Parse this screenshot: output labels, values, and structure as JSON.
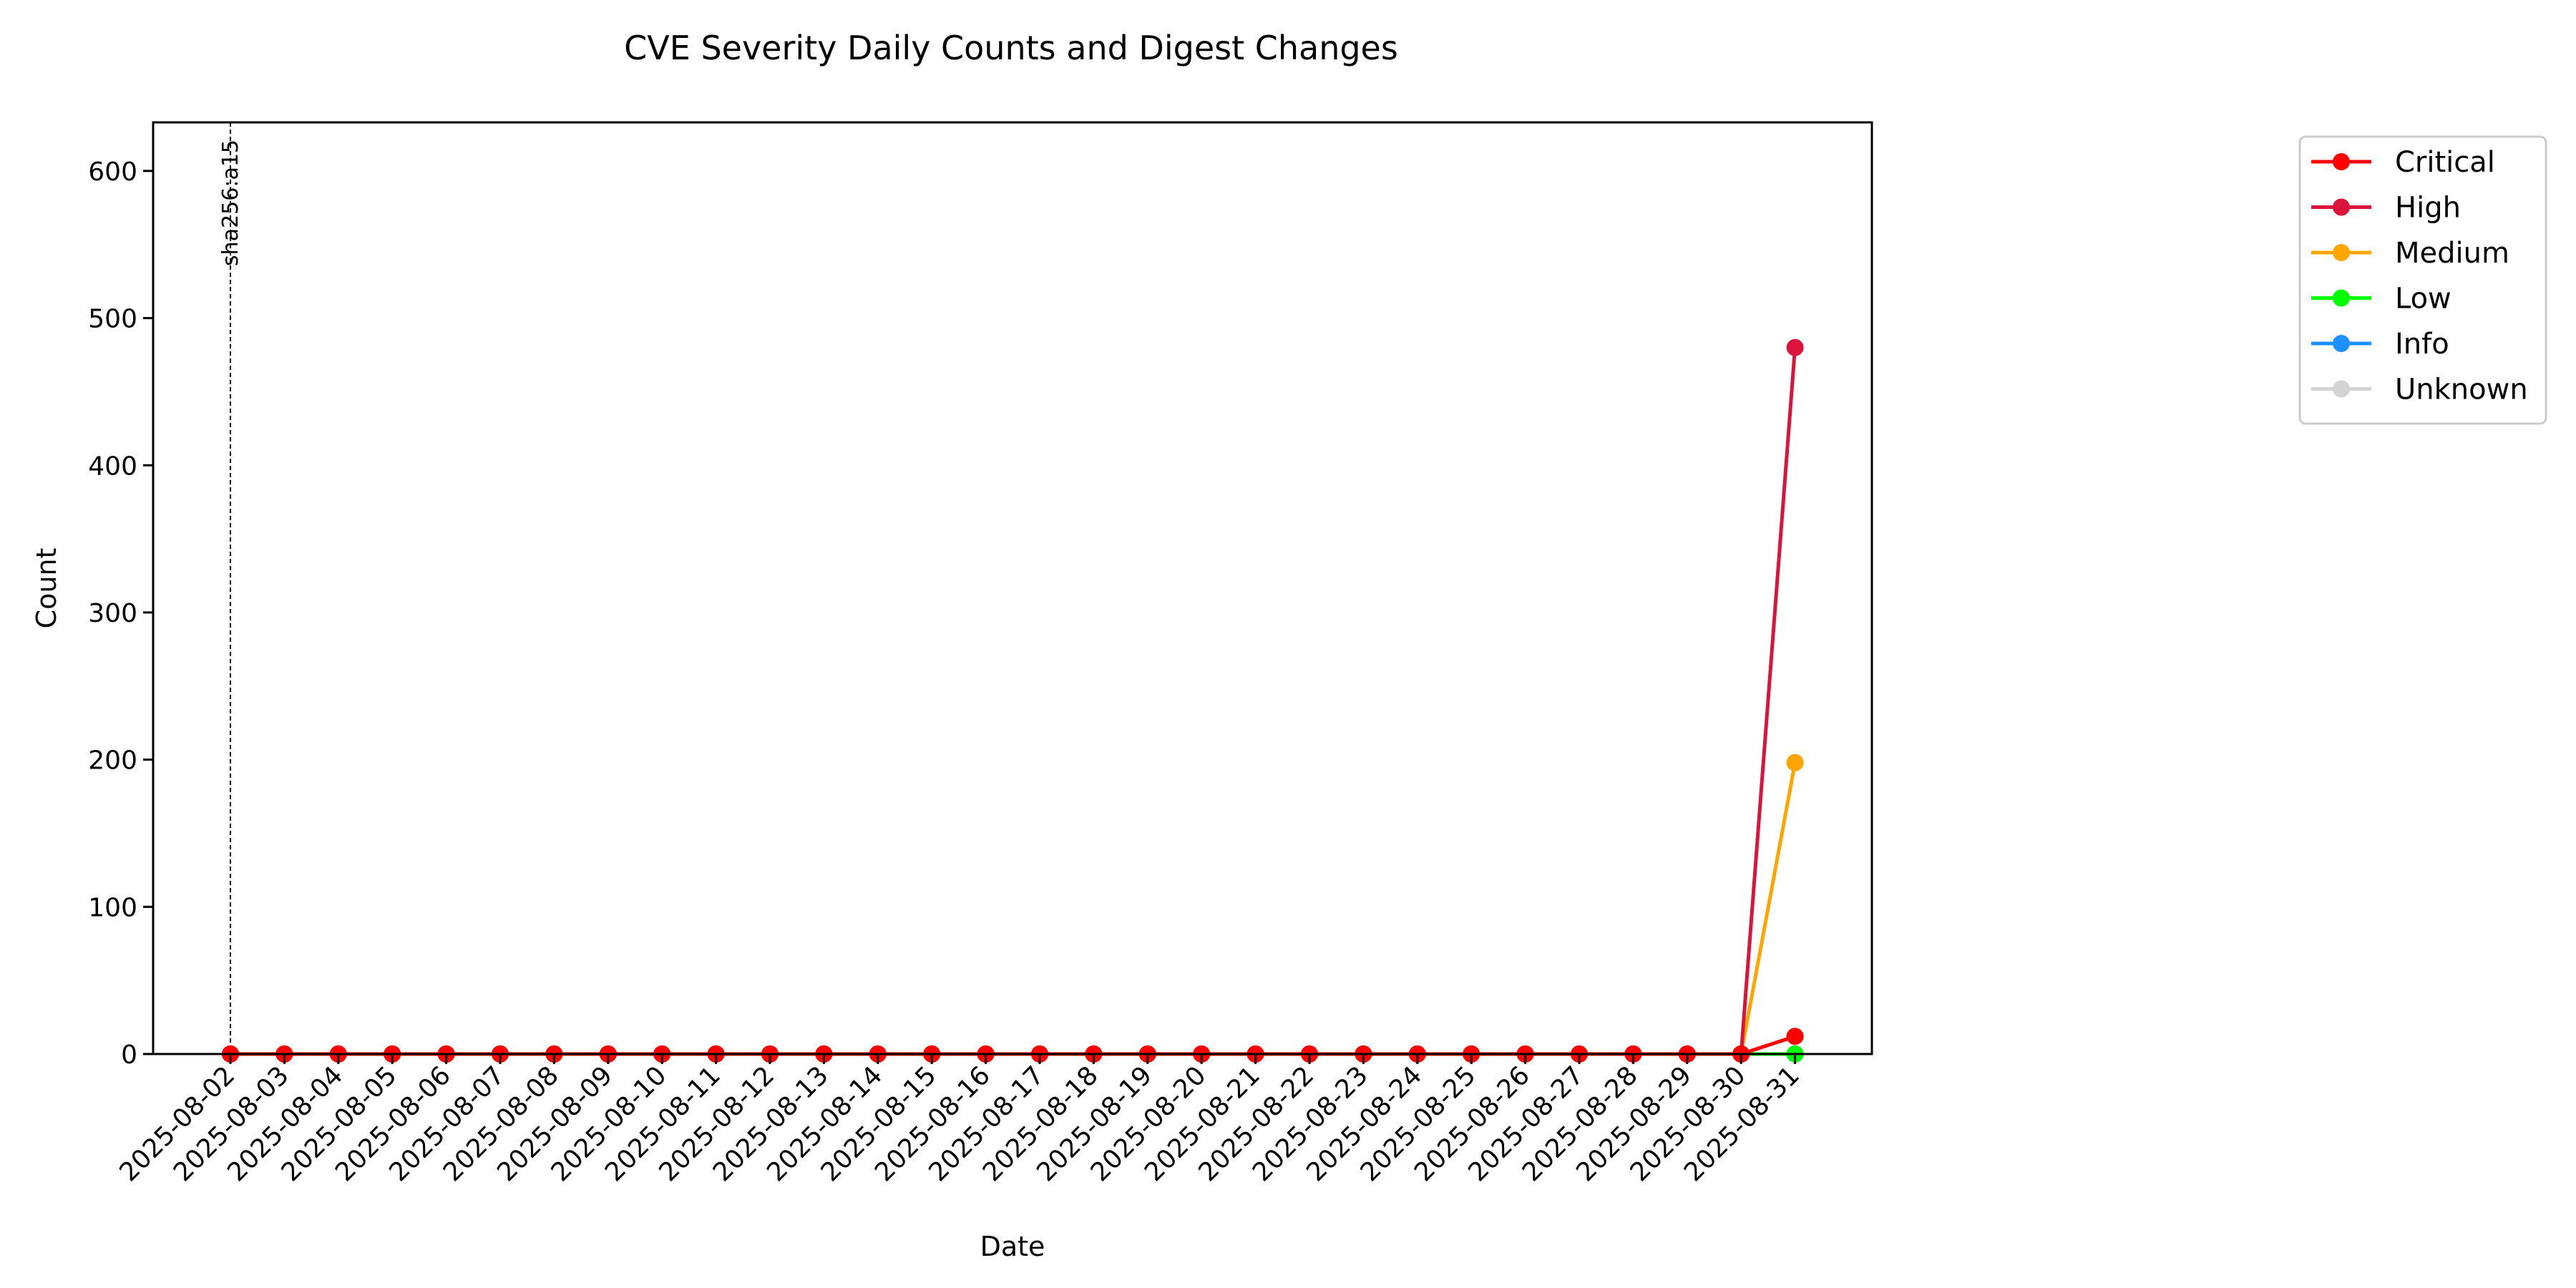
{
  "chart_data": {
    "type": "line",
    "title": "CVE Severity Daily Counts and Digest Changes",
    "xlabel": "Date",
    "ylabel": "Count",
    "ylim": [
      0,
      633
    ],
    "yticks": [
      0,
      100,
      200,
      300,
      400,
      500,
      600
    ],
    "x": [
      "2025-08-02",
      "2025-08-03",
      "2025-08-04",
      "2025-08-05",
      "2025-08-06",
      "2025-08-07",
      "2025-08-08",
      "2025-08-09",
      "2025-08-10",
      "2025-08-11",
      "2025-08-12",
      "2025-08-13",
      "2025-08-14",
      "2025-08-15",
      "2025-08-16",
      "2025-08-17",
      "2025-08-18",
      "2025-08-19",
      "2025-08-20",
      "2025-08-21",
      "2025-08-22",
      "2025-08-23",
      "2025-08-24",
      "2025-08-25",
      "2025-08-26",
      "2025-08-27",
      "2025-08-28",
      "2025-08-29",
      "2025-08-30",
      "2025-08-31"
    ],
    "grid": false,
    "legend_position": "outside-top-right",
    "series": [
      {
        "name": "Critical",
        "color": "#ff0000",
        "values": [
          0,
          0,
          0,
          0,
          0,
          0,
          0,
          0,
          0,
          0,
          0,
          0,
          0,
          0,
          0,
          0,
          0,
          0,
          0,
          0,
          0,
          0,
          0,
          0,
          0,
          0,
          0,
          0,
          0,
          12
        ]
      },
      {
        "name": "High",
        "color": "#dc143c",
        "values": [
          0,
          0,
          0,
          0,
          0,
          0,
          0,
          0,
          0,
          0,
          0,
          0,
          0,
          0,
          0,
          0,
          0,
          0,
          0,
          0,
          0,
          0,
          0,
          0,
          0,
          0,
          0,
          0,
          0,
          480
        ]
      },
      {
        "name": "Medium",
        "color": "#ffa500",
        "values": [
          0,
          0,
          0,
          0,
          0,
          0,
          0,
          0,
          0,
          0,
          0,
          0,
          0,
          0,
          0,
          0,
          0,
          0,
          0,
          0,
          0,
          0,
          0,
          0,
          0,
          0,
          0,
          0,
          0,
          198
        ]
      },
      {
        "name": "Low",
        "color": "#00ff00",
        "values": [
          0,
          0,
          0,
          0,
          0,
          0,
          0,
          0,
          0,
          0,
          0,
          0,
          0,
          0,
          0,
          0,
          0,
          0,
          0,
          0,
          0,
          0,
          0,
          0,
          0,
          0,
          0,
          0,
          0,
          0
        ]
      },
      {
        "name": "Info",
        "color": "#1e90ff",
        "values": [
          0,
          0,
          0,
          0,
          0,
          0,
          0,
          0,
          0,
          0,
          0,
          0,
          0,
          0,
          0,
          0,
          0,
          0,
          0,
          0,
          0,
          0,
          0,
          0,
          0,
          0,
          0,
          0,
          0,
          0
        ]
      },
      {
        "name": "Unknown",
        "color": "#d3d3d3",
        "values": [
          0,
          0,
          0,
          0,
          0,
          0,
          0,
          0,
          0,
          0,
          0,
          0,
          0,
          0,
          0,
          0,
          0,
          0,
          0,
          0,
          0,
          0,
          0,
          0,
          0,
          0,
          0,
          0,
          0,
          0
        ]
      }
    ],
    "annotations": [
      {
        "x": "2025-08-02",
        "label": "sha256:a15",
        "style": "dashed-vertical-line"
      }
    ]
  }
}
